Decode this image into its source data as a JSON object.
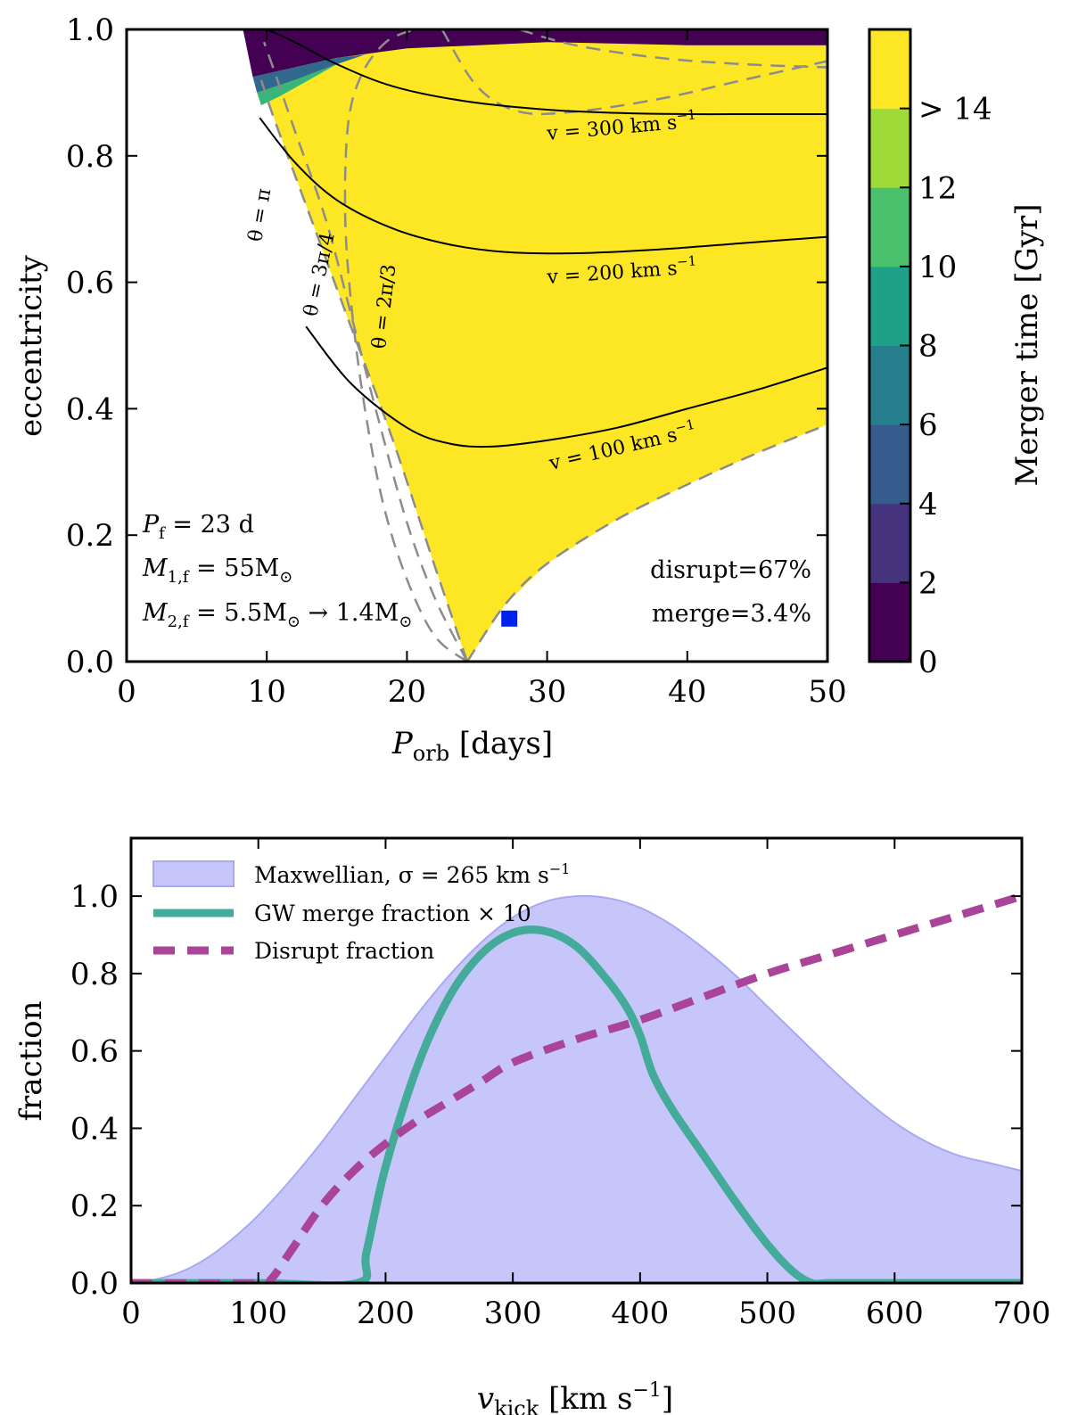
{
  "chart_data": [
    {
      "type": "heatmap",
      "xlabel": "P_orb [days]",
      "ylabel": "eccentricity",
      "xlim": [
        0,
        50
      ],
      "ylim": [
        0,
        1
      ],
      "xticks": [
        "0",
        "10",
        "20",
        "30",
        "40",
        "50"
      ],
      "yticks": [
        "0.0",
        "0.2",
        "0.4",
        "0.6",
        "0.8",
        "1.0"
      ],
      "colorbar": {
        "label": "Merger time [Gyr]",
        "ticks": [
          "0",
          "2",
          "4",
          "6",
          "8",
          "10",
          "12",
          "> 14"
        ],
        "colors": [
          "#440154",
          "#46337e",
          "#365c8d",
          "#277f8e",
          "#1fa187",
          "#4ac16d",
          "#a0da39",
          "#fde725"
        ]
      },
      "annotations": {
        "p_f": "P_f = 23 d",
        "m1": "M_1,f = 55M_⊙",
        "m2": "M_2,f = 5.5M_⊙ → 1.4M_⊙",
        "disrupt": "disrupt=67%",
        "merge": "merge=3.4%"
      },
      "velocity_contours": [
        {
          "label": "v = 100 km s⁻¹",
          "x": [
            12.8,
            16,
            20,
            23,
            26,
            30,
            35,
            40,
            45,
            50
          ],
          "y": [
            0.53,
            0.44,
            0.37,
            0.345,
            0.34,
            0.35,
            0.37,
            0.4,
            0.43,
            0.465
          ]
        },
        {
          "label": "v = 200 km s⁻¹",
          "x": [
            9.5,
            12,
            15,
            19,
            23,
            27,
            32,
            38,
            44,
            50
          ],
          "y": [
            0.86,
            0.79,
            0.73,
            0.685,
            0.66,
            0.648,
            0.646,
            0.652,
            0.662,
            0.672
          ]
        },
        {
          "label": "v = 300 km s⁻¹",
          "x": [
            10,
            12,
            15,
            19,
            24,
            30,
            35,
            40,
            45,
            50
          ],
          "y": [
            1.0,
            0.98,
            0.945,
            0.91,
            0.887,
            0.873,
            0.868,
            0.866,
            0.866,
            0.866
          ]
        }
      ],
      "theta_curves": [
        {
          "label": "θ = π",
          "x": [
            24.3,
            22,
            19,
            16,
            13,
            10.5,
            9.6
          ],
          "y": [
            0.0,
            0.15,
            0.35,
            0.53,
            0.71,
            0.86,
            0.92
          ]
        },
        {
          "label": "θ = 3π/4",
          "x": [
            24.3,
            22,
            20,
            18,
            16,
            14.2,
            12,
            10.6,
            9.8
          ],
          "y": [
            0.0,
            0.1,
            0.22,
            0.38,
            0.55,
            0.7,
            0.84,
            0.93,
            0.98
          ]
        },
        {
          "label": "θ = 2π/3",
          "x": [
            24.3,
            22,
            20,
            18.3,
            17,
            16.1,
            15.6,
            15.8,
            16.8,
            18.5,
            20.5
          ],
          "y": [
            0.0,
            0.04,
            0.13,
            0.25,
            0.4,
            0.55,
            0.7,
            0.85,
            0.93,
            0.98,
            1.0
          ]
        },
        {
          "label": "",
          "x": [
            24.3,
            27,
            30,
            35,
            40,
            45,
            50
          ],
          "y": [
            0.0,
            0.09,
            0.155,
            0.225,
            0.28,
            0.33,
            0.375
          ]
        },
        {
          "label": "",
          "x": [
            22.5,
            25,
            28,
            32,
            38,
            44,
            50
          ],
          "y": [
            1.0,
            0.91,
            0.87,
            0.87,
            0.89,
            0.92,
            0.95
          ]
        },
        {
          "label": "",
          "x": [
            28,
            32,
            38,
            44,
            50
          ],
          "y": [
            1.0,
            0.975,
            0.955,
            0.945,
            0.94
          ]
        }
      ],
      "marker": {
        "x": 27.3,
        "y": 0.068,
        "color": "#0022ee"
      }
    },
    {
      "type": "area",
      "xlabel": "v_kick [km s⁻¹]",
      "ylabel": "fraction",
      "xlim": [
        0,
        700
      ],
      "ylim": [
        0,
        1.15
      ],
      "xticks": [
        "0",
        "100",
        "200",
        "300",
        "400",
        "500",
        "600",
        "700"
      ],
      "yticks": [
        "0.0",
        "0.2",
        "0.4",
        "0.6",
        "0.8",
        "1.0"
      ],
      "legend_position": "top-left",
      "series": [
        {
          "name": "Maxwellian, σ = 265 km s⁻¹",
          "color": "#c6c6fa",
          "x": [
            0,
            20,
            40,
            60,
            80,
            100,
            125,
            150,
            175,
            200,
            225,
            250,
            275,
            300,
            325,
            350,
            375,
            400,
            425,
            450,
            475,
            500,
            525,
            550,
            575,
            600,
            625,
            650,
            675,
            700
          ],
          "y": [
            0.0,
            0.01,
            0.03,
            0.065,
            0.115,
            0.175,
            0.265,
            0.365,
            0.475,
            0.585,
            0.695,
            0.795,
            0.88,
            0.945,
            0.985,
            1.0,
            0.995,
            0.97,
            0.925,
            0.865,
            0.795,
            0.715,
            0.635,
            0.555,
            0.48,
            0.415,
            0.365,
            0.33,
            0.31,
            0.29
          ]
        },
        {
          "name": "GW merge fraction × 10",
          "color": "#44aa99",
          "x": [
            0,
            100,
            178,
            185,
            200,
            225,
            250,
            275,
            300,
            325,
            350,
            375,
            390,
            400,
            410,
            425,
            450,
            475,
            500,
            520,
            535,
            550,
            600,
            700
          ],
          "y": [
            0.0,
            0.0,
            0.0,
            0.08,
            0.3,
            0.56,
            0.74,
            0.85,
            0.905,
            0.91,
            0.87,
            0.78,
            0.71,
            0.64,
            0.54,
            0.45,
            0.33,
            0.21,
            0.1,
            0.03,
            0.0,
            0.0,
            0.0,
            0.0
          ]
        },
        {
          "name": "Disrupt fraction",
          "color": "#aa4499",
          "x": [
            0,
            100,
            110,
            125,
            150,
            175,
            200,
            225,
            250,
            275,
            300,
            350,
            400,
            450,
            500,
            550,
            600,
            650,
            700
          ],
          "y": [
            0.0,
            0.0,
            0.01,
            0.08,
            0.2,
            0.29,
            0.36,
            0.42,
            0.47,
            0.52,
            0.57,
            0.63,
            0.68,
            0.74,
            0.8,
            0.85,
            0.9,
            0.95,
            1.0
          ]
        }
      ]
    }
  ],
  "labels": {
    "top_xlabel_main": "P",
    "top_xlabel_sub": "orb",
    "top_xlabel_unit": " [days]",
    "top_ylabel": "eccentricity",
    "cbar_label": "Merger time [Gyr]",
    "bottom_xlabel_main": "v",
    "bottom_xlabel_sub": "kick",
    "bottom_xlabel_unit": " [km s",
    "bottom_xlabel_exp": "−1",
    "bottom_xlabel_close": "]",
    "bottom_ylabel": "fraction",
    "theta_pi": "θ = π",
    "theta_3pi4": "θ = 3π/4",
    "theta_2pi3": "θ = 2π/3",
    "v100": "v = 100 km s",
    "v200": "v = 200 km s",
    "v300": "v = 300 km s",
    "vexp": "−1",
    "ann_pf": "P",
    "ann_pf_sub": "f",
    "ann_pf_rest": " = 23 d",
    "ann_m1": "M",
    "ann_m1_sub": "1,f",
    "ann_m1_rest": " = 55M",
    "ann_m2": "M",
    "ann_m2_sub": "2,f",
    "ann_m2_rest": " = 5.5M",
    "ann_m2_arrow": " → 1.4M",
    "sun": "⊙",
    "disrupt": "disrupt=67%",
    "merge": "merge=3.4%",
    "leg_max": "Maxwellian, σ = 265 km s",
    "leg_gw": "GW merge fraction × 10",
    "leg_dis": "Disrupt fraction"
  }
}
